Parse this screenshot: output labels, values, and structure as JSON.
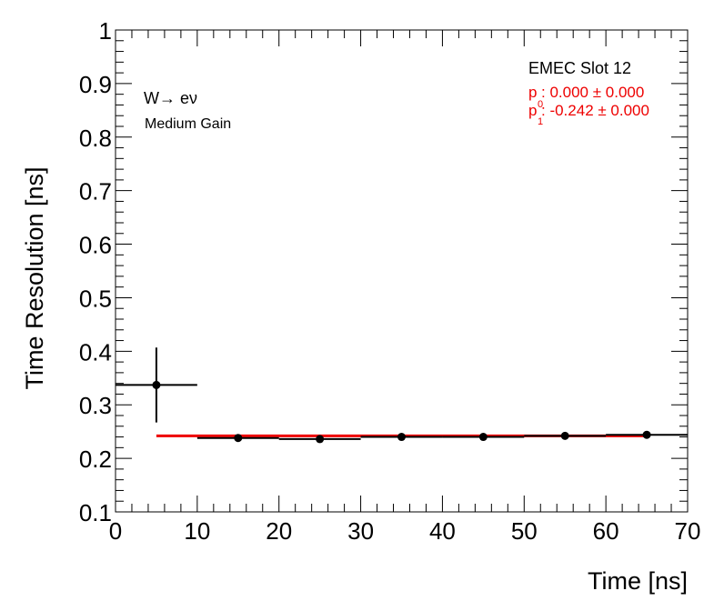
{
  "chart_data": {
    "type": "scatter",
    "title": "",
    "xlabel": "Time [ns]",
    "ylabel": "Time Resolution [ns]",
    "xlim": [
      0,
      70
    ],
    "ylim": [
      0.1,
      1.0
    ],
    "x_ticks": [
      0,
      10,
      20,
      30,
      40,
      50,
      60,
      70
    ],
    "x_tick_labels": [
      "0",
      "10",
      "20",
      "30",
      "40",
      "50",
      "60",
      "70"
    ],
    "y_ticks": [
      0.1,
      0.2,
      0.3,
      0.4,
      0.5,
      0.6,
      0.7,
      0.8,
      0.9,
      1.0
    ],
    "y_tick_labels": [
      "0.1",
      "0.2",
      "0.3",
      "0.4",
      "0.5",
      "0.6",
      "0.7",
      "0.8",
      "0.9",
      "1"
    ],
    "grid": false,
    "series": [
      {
        "color": "#000000",
        "points": [
          {
            "x": 5,
            "y": 0.337,
            "xerr": 5,
            "yerr": 0.07
          },
          {
            "x": 15,
            "y": 0.238,
            "xerr": 5,
            "yerr": 0.003
          },
          {
            "x": 25,
            "y": 0.236,
            "xerr": 5,
            "yerr": 0.003
          },
          {
            "x": 35,
            "y": 0.24,
            "xerr": 5,
            "yerr": 0.003
          },
          {
            "x": 45,
            "y": 0.24,
            "xerr": 5,
            "yerr": 0.003
          },
          {
            "x": 55,
            "y": 0.242,
            "xerr": 5,
            "yerr": 0.003
          },
          {
            "x": 65,
            "y": 0.244,
            "xerr": 5,
            "yerr": 0.003
          }
        ]
      }
    ],
    "fit": {
      "color": "#ee0000",
      "x_range": [
        5,
        65
      ],
      "y_value": 0.242
    },
    "annotations": {
      "process": "W→ eν",
      "gain": "Medium Gain",
      "slot": "EMEC Slot 12",
      "p0_symbol": "p",
      "p0_sub": "0",
      "p0_value": ": 0.000 ± 0.000",
      "p1_symbol": "p",
      "p1_sub": "1",
      "p1_value": ": -0.242 ± 0.000"
    }
  }
}
